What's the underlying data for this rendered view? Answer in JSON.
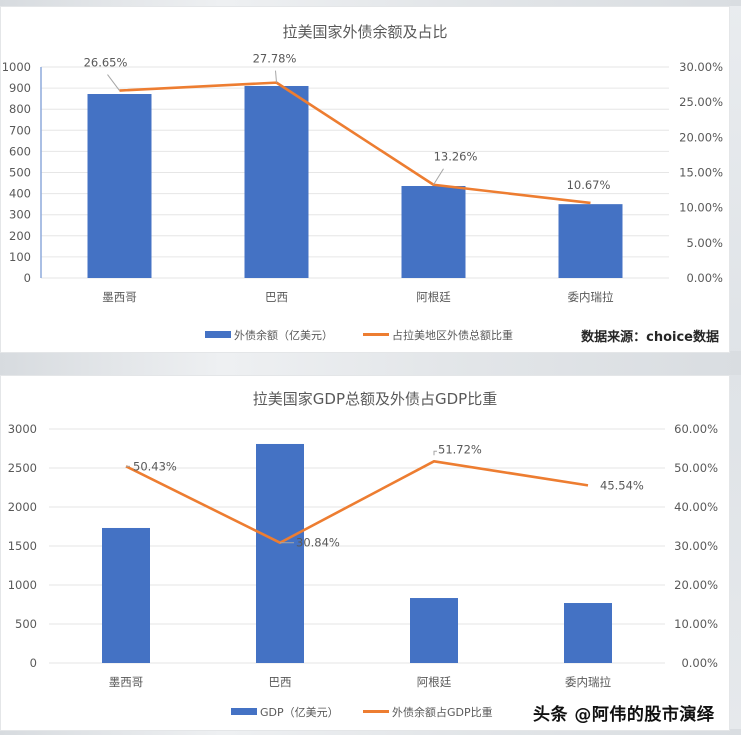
{
  "chart_data": [
    {
      "type": "bar+line",
      "title": "拉美国家外债余额及占比",
      "categories": [
        "墨西哥",
        "巴西",
        "阿根廷",
        "委内瑞拉"
      ],
      "series": [
        {
          "name": "外债余额（亿美元）",
          "type": "bar",
          "axis": "left",
          "color": "#4472c4",
          "values": [
            872,
            910,
            436,
            350
          ]
        },
        {
          "name": "占拉美地区外债总额比重",
          "type": "line",
          "axis": "right",
          "color": "#ed7d31",
          "values": [
            26.65,
            27.78,
            13.26,
            10.67
          ],
          "labels": [
            "26.65%",
            "27.78%",
            "13.26%",
            "10.67%"
          ]
        }
      ],
      "y_left": {
        "min": 0,
        "max": 1000,
        "step": 100,
        "ticks": [
          "0",
          "100",
          "200",
          "300",
          "400",
          "500",
          "600",
          "700",
          "800",
          "900",
          "1000"
        ]
      },
      "y_right": {
        "min": 0,
        "max": 30,
        "step": 5,
        "ticks": [
          "0.00%",
          "5.00%",
          "10.00%",
          "15.00%",
          "20.00%",
          "25.00%",
          "30.00%"
        ]
      },
      "grid": true,
      "legend_position": "bottom",
      "source_note": "数据来源：choice数据"
    },
    {
      "type": "bar+line",
      "title": "拉美国家GDP总额及外债占GDP比重",
      "categories": [
        "墨西哥",
        "巴西",
        "阿根廷",
        "委内瑞拉"
      ],
      "series": [
        {
          "name": "GDP（亿美元）",
          "type": "bar",
          "axis": "left",
          "color": "#4472c4",
          "values": [
            1731,
            2808,
            833,
            769
          ]
        },
        {
          "name": "外债余额占GDP比重",
          "type": "line",
          "axis": "right",
          "color": "#ed7d31",
          "values": [
            50.43,
            30.84,
            51.72,
            45.54
          ],
          "labels": [
            "50.43%",
            "30.84%",
            "51.72%",
            "45.54%"
          ]
        }
      ],
      "y_left": {
        "min": 0,
        "max": 3000,
        "step": 500,
        "ticks": [
          "0",
          "500",
          "1000",
          "1500",
          "2000",
          "2500",
          "3000"
        ]
      },
      "y_right": {
        "min": 0,
        "max": 60,
        "step": 10,
        "ticks": [
          "0.00%",
          "10.00%",
          "20.00%",
          "30.00%",
          "40.00%",
          "50.00%",
          "60.00%"
        ]
      },
      "grid": true,
      "legend_position": "bottom"
    }
  ],
  "watermark": "头条 @阿伟的股市演绎",
  "colors": {
    "bar": "#4472c4",
    "line": "#ed7d31",
    "grid": "#e6e6e6",
    "text": "#595959"
  }
}
